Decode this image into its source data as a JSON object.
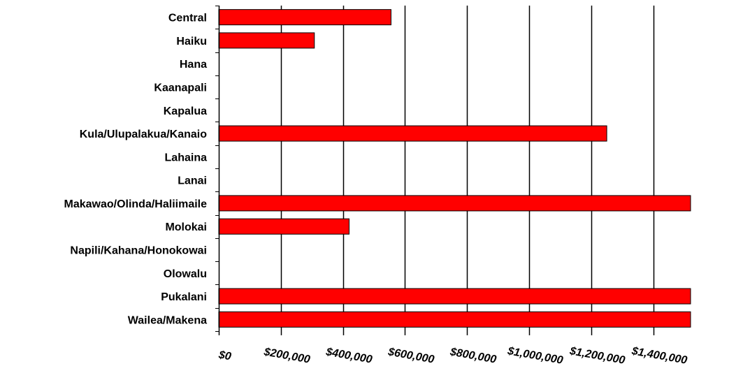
{
  "chart_data": {
    "type": "bar",
    "orientation": "horizontal",
    "title": "",
    "xlabel": "",
    "ylabel": "",
    "categories": [
      "Central",
      "Haiku",
      "Hana",
      "Kaanapali",
      "Kapalua",
      "Kula/Ulupalakua/Kanaio",
      "Lahaina",
      "Lanai",
      "Makawao/Olinda/Haliimaile",
      "Molokai",
      "Napili/Kahana/Honokowai",
      "Olowalu",
      "Pukalani",
      "Wailea/Makena"
    ],
    "values": [
      555000,
      308000,
      0,
      0,
      0,
      1250000,
      0,
      0,
      1520000,
      420000,
      0,
      0,
      1520000,
      1520000
    ],
    "xlim": [
      0,
      1520000
    ],
    "x_ticks": [
      0,
      200000,
      400000,
      600000,
      800000,
      1000000,
      1200000,
      1400000
    ],
    "x_tick_labels": [
      "$0",
      "$200,000",
      "$400,000",
      "$600,000",
      "$800,000",
      "$1,000,000",
      "$1,200,000",
      "$1,400,000"
    ],
    "grid": "vertical",
    "legend": "none",
    "colors": {
      "bar": "#ff0000",
      "bar_stroke": "#000000",
      "grid": "#000000",
      "text": "#000000"
    }
  }
}
